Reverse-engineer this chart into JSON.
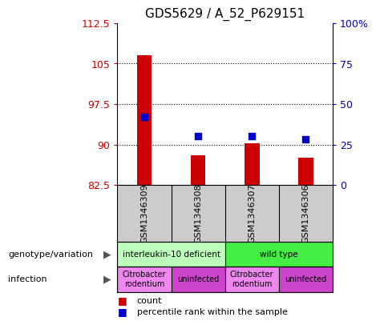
{
  "title": "GDS5629 / A_52_P629151",
  "samples": [
    "GSM1346309",
    "GSM1346308",
    "GSM1346307",
    "GSM1346306"
  ],
  "bar_values": [
    106.5,
    88.0,
    90.2,
    87.5
  ],
  "bar_base": 82.5,
  "percentile_values": [
    42,
    30,
    30,
    28
  ],
  "ylim_left": [
    82.5,
    112.5
  ],
  "yticks_left": [
    82.5,
    90.0,
    97.5,
    105.0,
    112.5
  ],
  "ylabels_left": [
    "82.5",
    "90",
    "97.5",
    "105",
    "112.5"
  ],
  "ylim_right": [
    0,
    100
  ],
  "yticks_right": [
    0,
    25,
    50,
    75,
    100
  ],
  "ylabels_right": [
    "0",
    "25",
    "50",
    "75",
    "100%"
  ],
  "bar_color": "#cc0000",
  "dot_color": "#0000cc",
  "genotype_groups": [
    {
      "label": "interleukin-10 deficient",
      "color": "#bbffbb",
      "cols": [
        0,
        1
      ]
    },
    {
      "label": "wild type",
      "color": "#44ee44",
      "cols": [
        2,
        3
      ]
    }
  ],
  "infection_groups": [
    {
      "label": "Citrobacter\nrodentium",
      "color": "#ee88ee",
      "cols": [
        0
      ]
    },
    {
      "label": "uninfected",
      "color": "#cc44cc",
      "cols": [
        1
      ]
    },
    {
      "label": "Citrobacter\nrodentium",
      "color": "#ee88ee",
      "cols": [
        2
      ]
    },
    {
      "label": "uninfected",
      "color": "#cc44cc",
      "cols": [
        3
      ]
    }
  ],
  "legend_count_label": "count",
  "legend_percentile_label": "percentile rank within the sample",
  "left_axis_color": "#cc0000",
  "right_axis_color": "#0000bb",
  "sample_box_color": "#cccccc",
  "row_label_genotype": "genotype/variation",
  "row_label_infection": "infection"
}
